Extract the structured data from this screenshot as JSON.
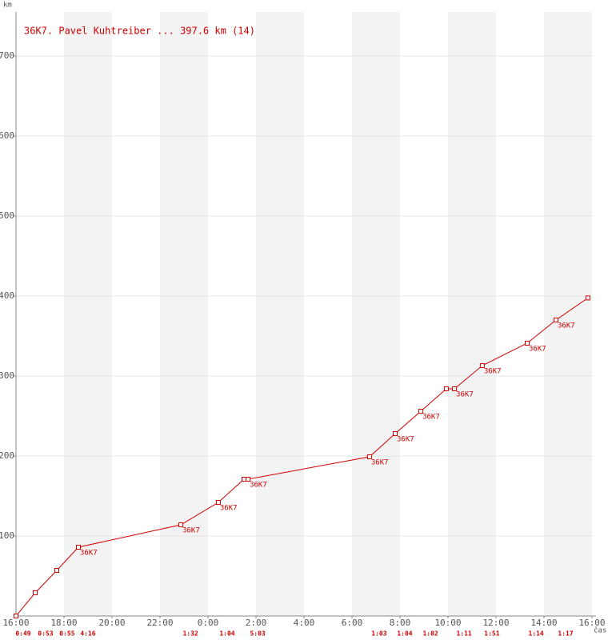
{
  "chart_data": {
    "type": "line",
    "title": "36K7. Pavel Kuhtreiber ... 397.6 km (14)",
    "y_label": "km",
    "x_label": "čas",
    "color": "#d00000",
    "xlim": [
      0,
      24
    ],
    "xticks": [
      {
        "value": 0,
        "label": "16:00"
      },
      {
        "value": 2,
        "label": "18:00"
      },
      {
        "value": 4,
        "label": "20:00"
      },
      {
        "value": 6,
        "label": "22:00"
      },
      {
        "value": 8,
        "label": "0:00"
      },
      {
        "value": 10,
        "label": "2:00"
      },
      {
        "value": 12,
        "label": "4:00"
      },
      {
        "value": 14,
        "label": "6:00"
      },
      {
        "value": 16,
        "label": "8:00"
      },
      {
        "value": 18,
        "label": "10:00"
      },
      {
        "value": 20,
        "label": "12:00"
      },
      {
        "value": 22,
        "label": "14:00"
      },
      {
        "value": 24,
        "label": "16:00"
      }
    ],
    "ylim": [
      0,
      750
    ],
    "yticks": [
      100,
      200,
      300,
      400,
      500,
      600,
      700
    ],
    "grid": true,
    "series": [
      {
        "name": "36K7",
        "x": [
          0,
          0.8,
          1.7,
          2.6,
          6.87,
          8.43,
          9.5,
          9.67,
          14.73,
          15.8,
          16.87,
          17.93,
          18.27,
          19.43,
          21.3,
          22.5,
          23.83
        ],
        "values": [
          0,
          29,
          57,
          86,
          114,
          142,
          171,
          171,
          199,
          228,
          256,
          284,
          284,
          313,
          341,
          370,
          397.6
        ],
        "point_labels": [
          null,
          null,
          null,
          "36K7",
          "36K7",
          "36K7",
          null,
          "36K7",
          "36K7",
          "36K7",
          "36K7",
          null,
          "36K7",
          "36K7",
          "36K7",
          "36K7",
          null
        ]
      }
    ],
    "durations": {
      "x": [
        0.3,
        1.23,
        2.13,
        3.0,
        7.27,
        8.8,
        10.07,
        15.13,
        16.2,
        17.27,
        18.67,
        19.83,
        21.67,
        22.9
      ],
      "labels": [
        "0:49",
        "0:53",
        "0:55",
        "4:16",
        "1:32",
        "1:04",
        "5:03",
        "1:03",
        "1:04",
        "1:02",
        "1:11",
        "1:51",
        "1:14",
        "1:17"
      ]
    }
  }
}
